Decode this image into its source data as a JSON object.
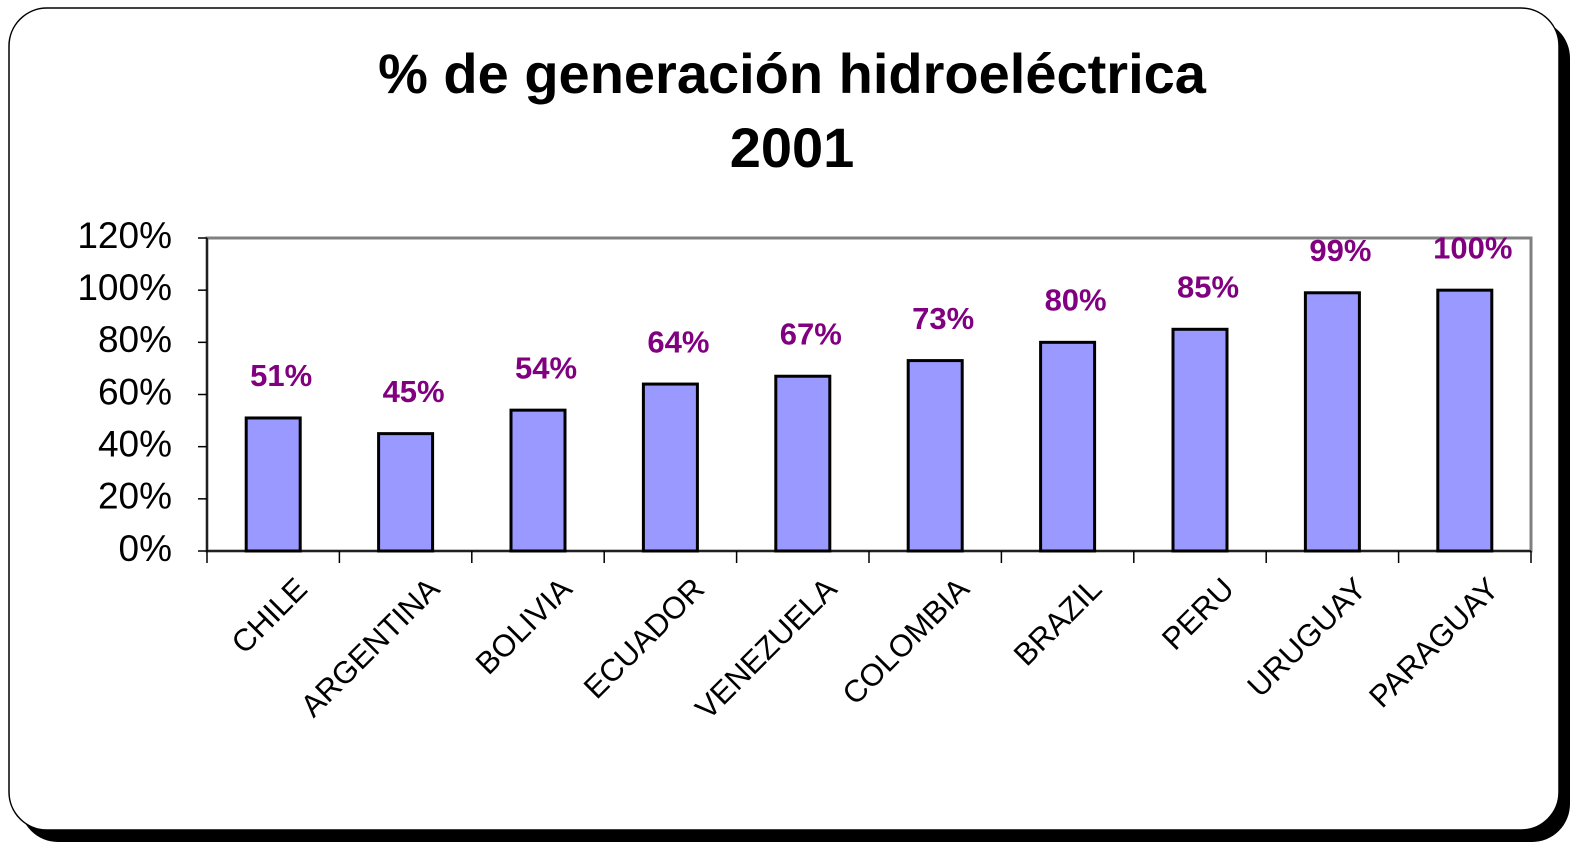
{
  "chart_data": {
    "type": "bar",
    "title": "% de generación hidroeléctrica",
    "subtitle": "2001",
    "categories": [
      "CHILE",
      "ARGENTINA",
      "BOLIVIA",
      "ECUADOR",
      "VENEZUELA",
      "COLOMBIA",
      "BRAZIL",
      "PERU",
      "URUGUAY",
      "PARAGUAY"
    ],
    "values": [
      51,
      45,
      54,
      64,
      67,
      73,
      80,
      85,
      99,
      100
    ],
    "value_labels": [
      "51%",
      "45%",
      "54%",
      "64%",
      "67%",
      "73%",
      "80%",
      "85%",
      "99%",
      "100%"
    ],
    "color": "#9999ff",
    "label_color": "#800080",
    "ylim": [
      0,
      120
    ],
    "yticks": [
      {
        "value": 0,
        "label": "0%"
      },
      {
        "value": 20,
        "label": "20%"
      },
      {
        "value": 40,
        "label": "40%"
      },
      {
        "value": 60,
        "label": "60%"
      },
      {
        "value": 80,
        "label": "80%"
      },
      {
        "value": 100,
        "label": "100%"
      },
      {
        "value": 120,
        "label": "120%"
      }
    ],
    "grid": false
  }
}
